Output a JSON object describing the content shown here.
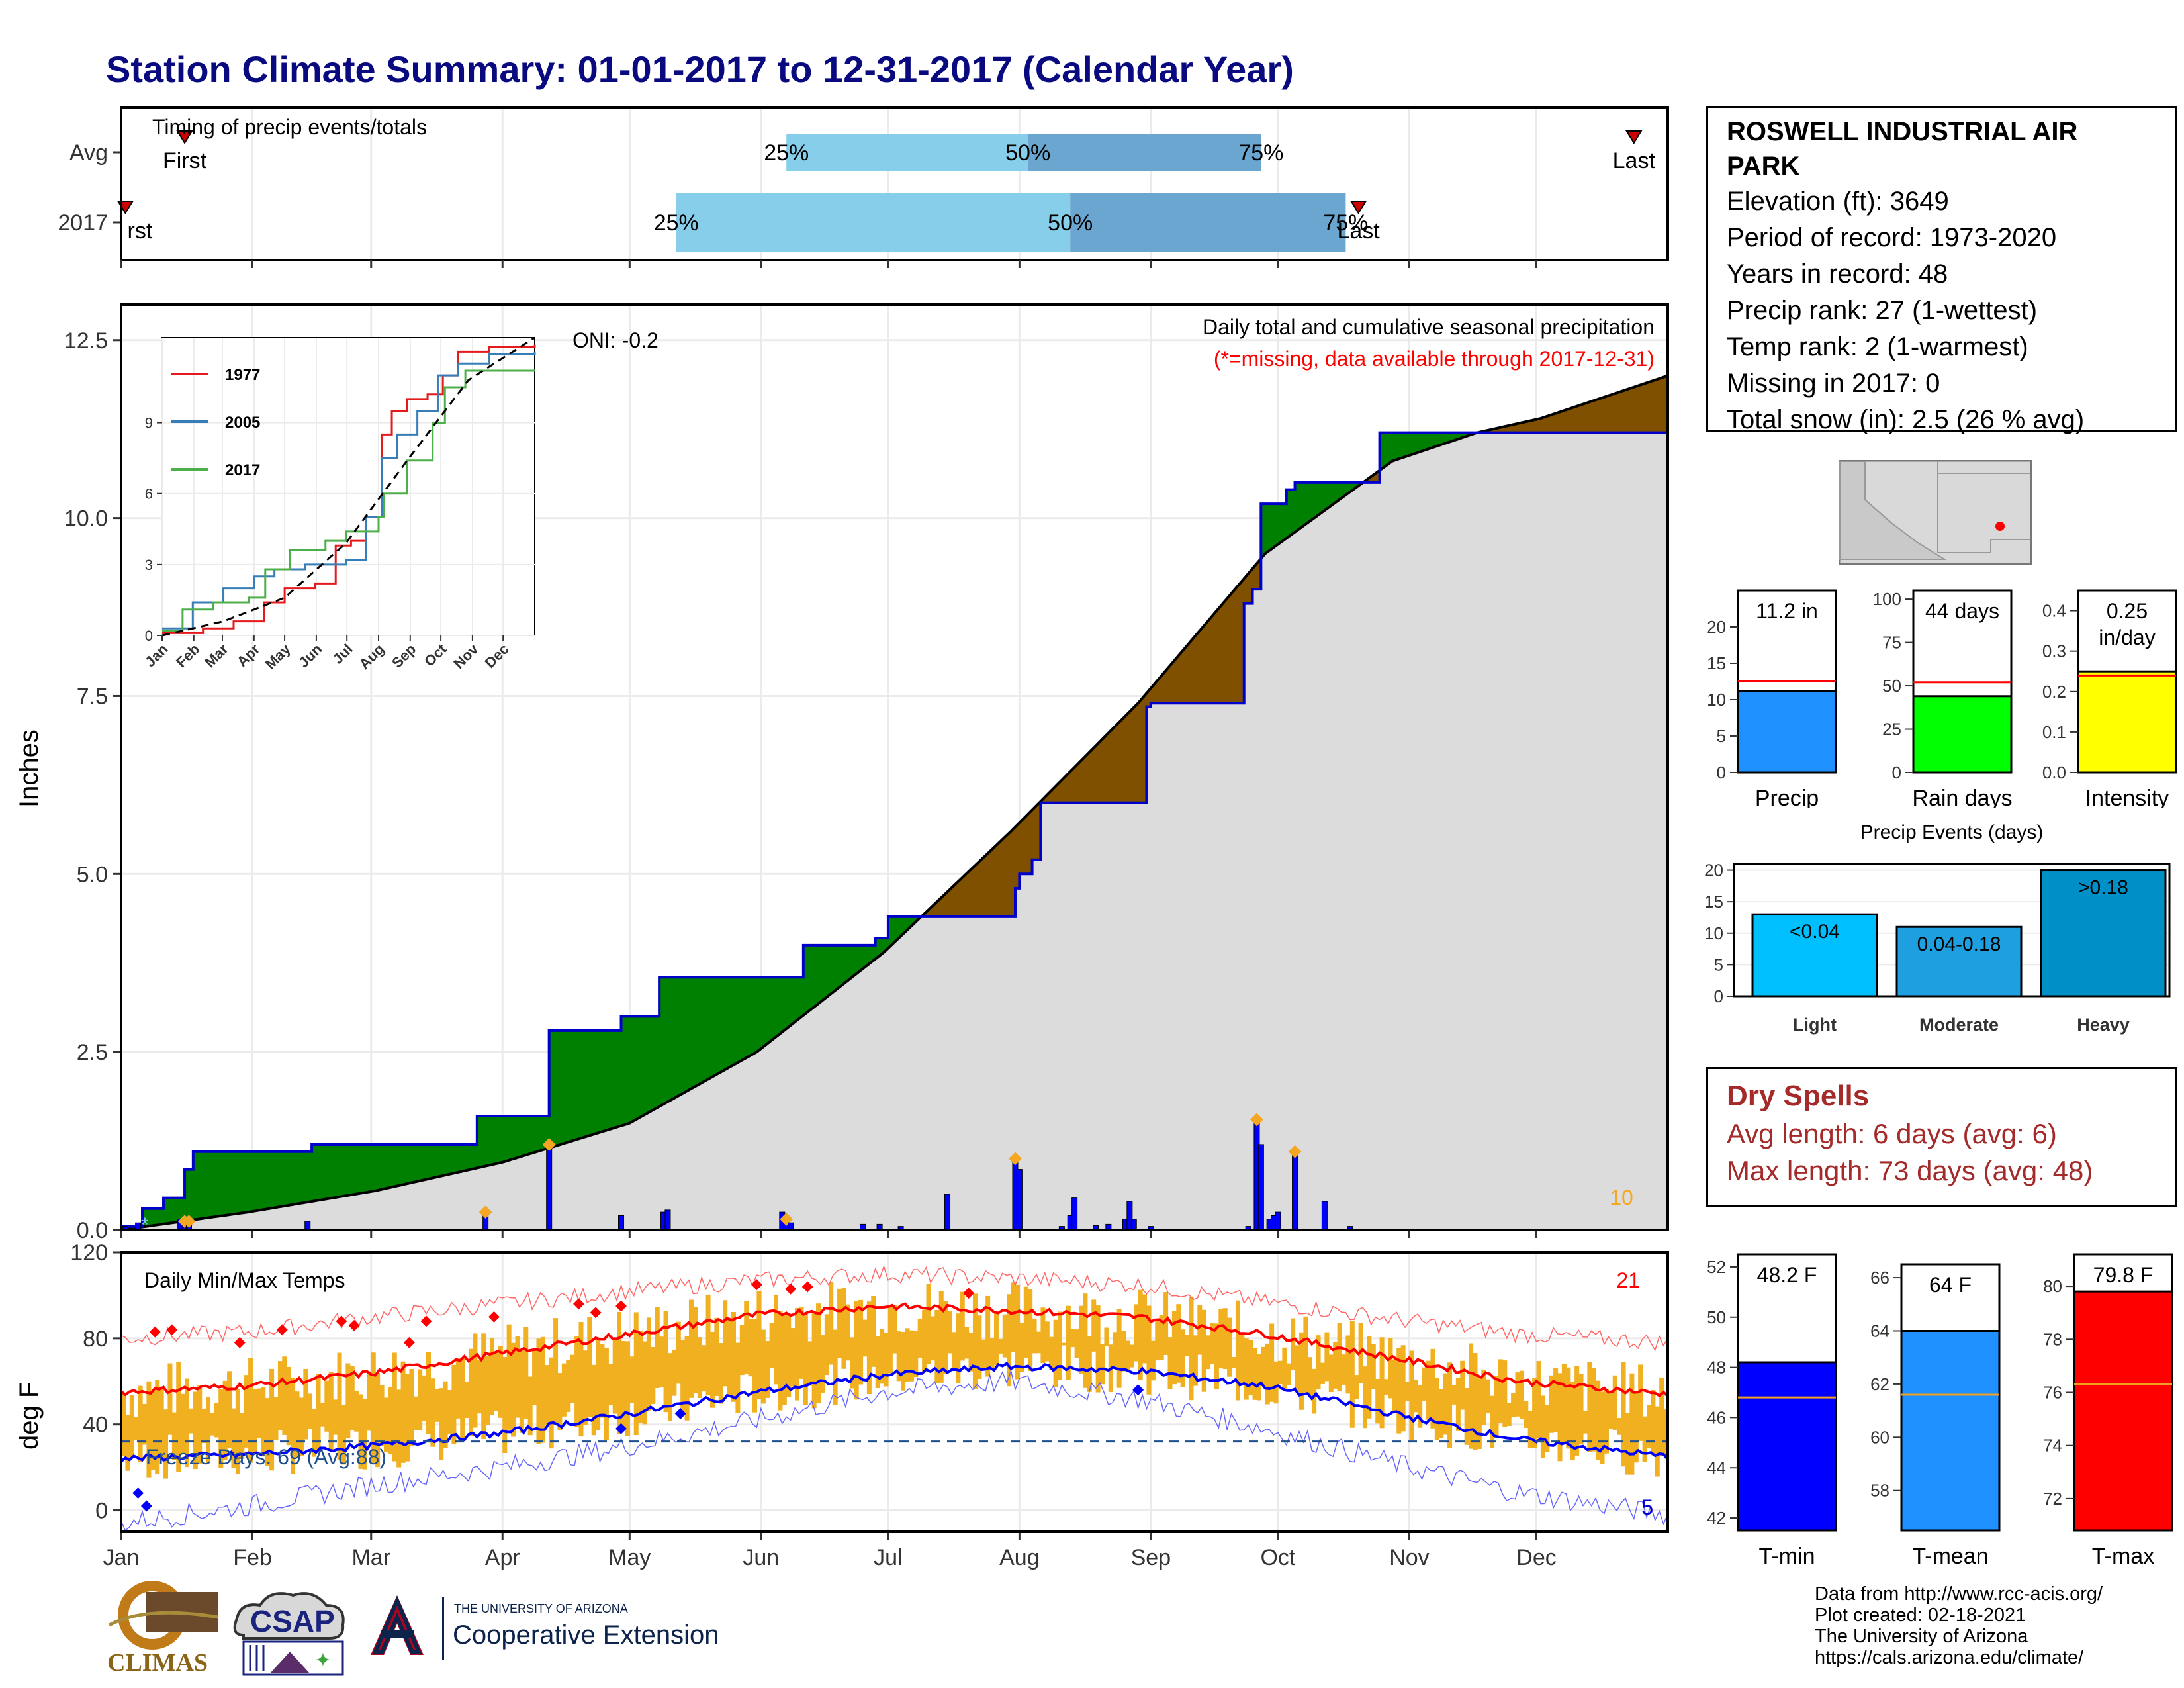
{
  "title": "Station Climate Summary: 01-01-2017 to 12-31-2017 (Calendar Year)",
  "months": [
    "Jan",
    "Feb",
    "Mar",
    "Apr",
    "May",
    "Jun",
    "Jul",
    "Aug",
    "Sep",
    "Oct",
    "Nov",
    "Dec"
  ],
  "station": {
    "name": "ROSWELL INDUSTRIAL AIR PARK",
    "lines": [
      "Elevation (ft): 3649",
      "Period of record: 1973-2020",
      "Years in record: 48",
      "Precip rank: 27 (1-wettest)",
      "Temp rank: 2 (1-warmest)",
      "Missing in 2017: 0",
      "Total snow (in): 2.5 (26 % avg)"
    ]
  },
  "colors": {
    "title": "#0a0a80",
    "green_fill": "#008000",
    "brown_fill": "#7f5000",
    "grey_fill": "#dcdcdc",
    "bar_blue": "#0000ff",
    "orange": "#f5a623",
    "red": "#ff0000",
    "dry_spell": "#a52a2a",
    "light_blue": "#87ceeb",
    "steel_blue": "#6aa6cf"
  },
  "timing": {
    "label": "Timing of precip events/totals",
    "rows": [
      "Avg",
      "2017"
    ],
    "first_label": "First",
    "first_2017_label": "rst",
    "last_label": "Last",
    "pct_labels": [
      "25%",
      "50%",
      "75%"
    ],
    "chart_data": {
      "type": "bar",
      "x_unit": "day of year",
      "series": [
        {
          "name": "Avg",
          "first": 15,
          "p25": 157,
          "p50": 214,
          "p75": 269,
          "last": 357
        },
        {
          "name": "2017",
          "first": 1,
          "p25": 131,
          "p50": 224,
          "p75": 289,
          "last": 292
        }
      ]
    }
  },
  "precip": {
    "ylabel": "Inches",
    "header": "Daily total and cumulative seasonal precipitation",
    "subheader": "(*=missing, data available through 2017-12-31)",
    "oni": "ONI: -0.2",
    "corner_count": "10",
    "yticks": [
      "0.0",
      "2.5",
      "5.0",
      "7.5",
      "10.0",
      "12.5"
    ],
    "chart_data": {
      "type": "area",
      "ylim": [
        0,
        13.0
      ],
      "cumulative_2017": [
        [
          0,
          0.05
        ],
        [
          5,
          0.3
        ],
        [
          10,
          0.45
        ],
        [
          15,
          0.85
        ],
        [
          17,
          1.1
        ],
        [
          45,
          1.2
        ],
        [
          84,
          1.6
        ],
        [
          98,
          1.6
        ],
        [
          101,
          2.8
        ],
        [
          118,
          3.0
        ],
        [
          127,
          3.55
        ],
        [
          157,
          3.55
        ],
        [
          161,
          4.0
        ],
        [
          178,
          4.1
        ],
        [
          181,
          4.4
        ],
        [
          211,
          4.8
        ],
        [
          212,
          5.0
        ],
        [
          215,
          5.2
        ],
        [
          217,
          6.0
        ],
        [
          240,
          6.0
        ],
        [
          242,
          7.35
        ],
        [
          243,
          7.4
        ],
        [
          263,
          7.4
        ],
        [
          265,
          8.8
        ],
        [
          267,
          9.0
        ],
        [
          269,
          10.2
        ],
        [
          275,
          10.4
        ],
        [
          277,
          10.5
        ],
        [
          297,
          11.2
        ],
        [
          365,
          11.2
        ]
      ],
      "avg_cumulative": [
        [
          0,
          0.0
        ],
        [
          30,
          0.25
        ],
        [
          60,
          0.55
        ],
        [
          90,
          0.95
        ],
        [
          120,
          1.5
        ],
        [
          150,
          2.5
        ],
        [
          180,
          3.9
        ],
        [
          210,
          5.6
        ],
        [
          240,
          7.4
        ],
        [
          270,
          9.5
        ],
        [
          300,
          10.8
        ],
        [
          320,
          11.2
        ],
        [
          335,
          11.4
        ],
        [
          365,
          12.0
        ]
      ],
      "daily_bars": [
        [
          1,
          0.05
        ],
        [
          4,
          0.1
        ],
        [
          14,
          0.15
        ],
        [
          15,
          0.12
        ],
        [
          16,
          0.12
        ],
        [
          44,
          0.12
        ],
        [
          86,
          0.25
        ],
        [
          101,
          1.2
        ],
        [
          118,
          0.2
        ],
        [
          128,
          0.25
        ],
        [
          129,
          0.28
        ],
        [
          156,
          0.25
        ],
        [
          157,
          0.15
        ],
        [
          158,
          0.1
        ],
        [
          175,
          0.08
        ],
        [
          179,
          0.08
        ],
        [
          184,
          0.05
        ],
        [
          195,
          0.5
        ],
        [
          211,
          1.0
        ],
        [
          212,
          0.85
        ],
        [
          222,
          0.05
        ],
        [
          224,
          0.2
        ],
        [
          225,
          0.45
        ],
        [
          230,
          0.06
        ],
        [
          233,
          0.08
        ],
        [
          237,
          0.15
        ],
        [
          238,
          0.4
        ],
        [
          239,
          0.15
        ],
        [
          243,
          0.05
        ],
        [
          266,
          0.05
        ],
        [
          268,
          1.55
        ],
        [
          269,
          1.2
        ],
        [
          271,
          0.15
        ],
        [
          272,
          0.2
        ],
        [
          273,
          0.25
        ],
        [
          277,
          1.1
        ],
        [
          284,
          0.4
        ],
        [
          290,
          0.05
        ]
      ]
    },
    "inset": {
      "legend": [
        "1977",
        "2005",
        "2017"
      ],
      "yticks": [
        "0",
        "3",
        "6",
        "9"
      ],
      "xticks": [
        "Jan",
        "Feb",
        "Mar",
        "Apr",
        "May",
        "Jun",
        "Jul",
        "Aug",
        "Sep",
        "Oct",
        "Nov",
        "Dec"
      ],
      "chart_data": {
        "type": "line",
        "ylim": [
          0,
          12.6
        ],
        "series": [
          {
            "name": "1977",
            "values": [
              [
                0,
                0.1
              ],
              [
                40,
                0.3
              ],
              [
                70,
                0.6
              ],
              [
                100,
                1.4
              ],
              [
                120,
                2.0
              ],
              [
                150,
                2.2
              ],
              [
                170,
                3.8
              ],
              [
                185,
                4.0
              ],
              [
                200,
                5.0
              ],
              [
                215,
                8.5
              ],
              [
                225,
                9.5
              ],
              [
                240,
                10.0
              ],
              [
                260,
                10.2
              ],
              [
                275,
                11.0
              ],
              [
                290,
                12.0
              ],
              [
                320,
                12.2
              ],
              [
                365,
                12.3
              ]
            ]
          },
          {
            "name": "2005",
            "values": [
              [
                0,
                0.3
              ],
              [
                30,
                1.4
              ],
              [
                60,
                2.0
              ],
              [
                90,
                2.5
              ],
              [
                110,
                2.8
              ],
              [
                140,
                3.0
              ],
              [
                180,
                3.2
              ],
              [
                200,
                5.0
              ],
              [
                215,
                7.5
              ],
              [
                230,
                8.5
              ],
              [
                250,
                9.5
              ],
              [
                270,
                11.0
              ],
              [
                290,
                11.5
              ],
              [
                320,
                11.9
              ],
              [
                365,
                12.0
              ]
            ]
          },
          {
            "name": "2017",
            "values": [
              [
                0,
                0.2
              ],
              [
                20,
                1.1
              ],
              [
                50,
                1.4
              ],
              [
                85,
                1.6
              ],
              [
                101,
                2.8
              ],
              [
                125,
                3.6
              ],
              [
                160,
                4.0
              ],
              [
                180,
                4.4
              ],
              [
                212,
                5.0
              ],
              [
                217,
                6.0
              ],
              [
                240,
                7.4
              ],
              [
                265,
                9.0
              ],
              [
                277,
                10.5
              ],
              [
                297,
                11.2
              ],
              [
                365,
                11.2
              ]
            ]
          },
          {
            "name": "avg",
            "values": [
              [
                0,
                0.0
              ],
              [
                60,
                0.6
              ],
              [
                120,
                1.6
              ],
              [
                180,
                3.9
              ],
              [
                240,
                7.4
              ],
              [
                300,
                10.8
              ],
              [
                365,
                12.6
              ]
            ]
          }
        ]
      }
    }
  },
  "temps": {
    "ylabel": "deg F",
    "title": "Daily Min/Max Temps",
    "freeze_label": "Freeze Days: 69 (Avg:88)",
    "hot_count": "21",
    "cold_count": "5",
    "yticks": [
      "0",
      "40",
      "80",
      "120"
    ],
    "chart_data": {
      "type": "line",
      "ylim": [
        -10,
        120
      ],
      "freeze_line": 32,
      "avg_max": [
        [
          0,
          55
        ],
        [
          30,
          58
        ],
        [
          60,
          64
        ],
        [
          90,
          73
        ],
        [
          120,
          82
        ],
        [
          150,
          91
        ],
        [
          180,
          95
        ],
        [
          210,
          93
        ],
        [
          240,
          90
        ],
        [
          270,
          82
        ],
        [
          300,
          71
        ],
        [
          330,
          60
        ],
        [
          365,
          54
        ]
      ],
      "avg_min": [
        [
          0,
          24
        ],
        [
          30,
          26
        ],
        [
          60,
          30
        ],
        [
          90,
          36
        ],
        [
          120,
          45
        ],
        [
          150,
          55
        ],
        [
          180,
          63
        ],
        [
          210,
          67
        ],
        [
          240,
          65
        ],
        [
          270,
          58
        ],
        [
          300,
          45
        ],
        [
          330,
          33
        ],
        [
          365,
          25
        ]
      ],
      "record_max": [
        [
          0,
          80
        ],
        [
          30,
          83
        ],
        [
          60,
          90
        ],
        [
          90,
          96
        ],
        [
          120,
          102
        ],
        [
          150,
          107
        ],
        [
          180,
          110
        ],
        [
          210,
          108
        ],
        [
          240,
          105
        ],
        [
          270,
          97
        ],
        [
          300,
          89
        ],
        [
          330,
          82
        ],
        [
          365,
          78
        ]
      ],
      "record_min": [
        [
          0,
          -6
        ],
        [
          30,
          2
        ],
        [
          60,
          12
        ],
        [
          90,
          20
        ],
        [
          120,
          30
        ],
        [
          150,
          42
        ],
        [
          180,
          55
        ],
        [
          210,
          60
        ],
        [
          240,
          52
        ],
        [
          270,
          38
        ],
        [
          300,
          22
        ],
        [
          330,
          8
        ],
        [
          365,
          -2
        ]
      ]
    }
  },
  "mini_bars": {
    "precip": {
      "label": "Precip",
      "value_text": "11.2 in",
      "value": 11.2,
      "avg": 12.5,
      "ylim": [
        0,
        25
      ],
      "yticks": [
        "0",
        "5",
        "10",
        "15",
        "20"
      ]
    },
    "rain_days": {
      "label": "Rain days",
      "value_text": "44 days",
      "value": 44,
      "avg": 52,
      "ylim": [
        0,
        105
      ],
      "yticks": [
        "0",
        "25",
        "50",
        "75",
        "100"
      ]
    },
    "intensity": {
      "label": "Intensity",
      "value_text": "0.25 in/day",
      "value_line1": "0.25",
      "value_line2": "in/day",
      "value": 0.25,
      "avg": 0.24,
      "ylim": [
        0,
        0.45
      ],
      "yticks": [
        "0.0",
        "0.1",
        "0.2",
        "0.3",
        "0.4"
      ]
    }
  },
  "precip_events": {
    "title": "Precip Events (days)",
    "yticks": [
      "0",
      "5",
      "10",
      "15",
      "20"
    ],
    "chart_data": {
      "type": "bar",
      "categories": [
        "Light",
        "Moderate",
        "Heavy"
      ],
      "labels": [
        "<0.04",
        "0.04-0.18",
        ">0.18"
      ],
      "values": [
        13,
        11,
        20
      ],
      "ylim": [
        0,
        21
      ]
    }
  },
  "dry_spells": {
    "title": "Dry Spells",
    "avg": "Avg length: 6 days (avg: 6)",
    "max": "Max length: 73 days (avg: 48)"
  },
  "temp_bars": {
    "tmin": {
      "label": "T-min",
      "value_text": "48.2 F",
      "value": 48.2,
      "avg": 46.8,
      "ylim": [
        41.5,
        52.5
      ],
      "yticks": [
        "42",
        "44",
        "46",
        "48",
        "50",
        "52"
      ]
    },
    "tmean": {
      "label": "T-mean",
      "value_text": "64 F",
      "value": 64,
      "avg": 61.6,
      "ylim": [
        56.5,
        66.5
      ],
      "yticks": [
        "58",
        "60",
        "62",
        "64",
        "66"
      ]
    },
    "tmax": {
      "label": "T-max",
      "value_text": "79.8 F",
      "value": 79.8,
      "avg": 76.3,
      "ylim": [
        70.8,
        81.2
      ],
      "yticks": [
        "72",
        "74",
        "76",
        "78",
        "80"
      ]
    }
  },
  "credits": [
    "Data from http://www.rcc-acis.org/",
    "Plot created: 02-18-2021",
    "The University of Arizona",
    "https://cals.arizona.edu/climate/"
  ],
  "logos": {
    "climas": "CLIMAS",
    "csap": "CSAP",
    "uofa_small": "THE UNIVERSITY OF ARIZONA",
    "extension": "Cooperative Extension"
  }
}
